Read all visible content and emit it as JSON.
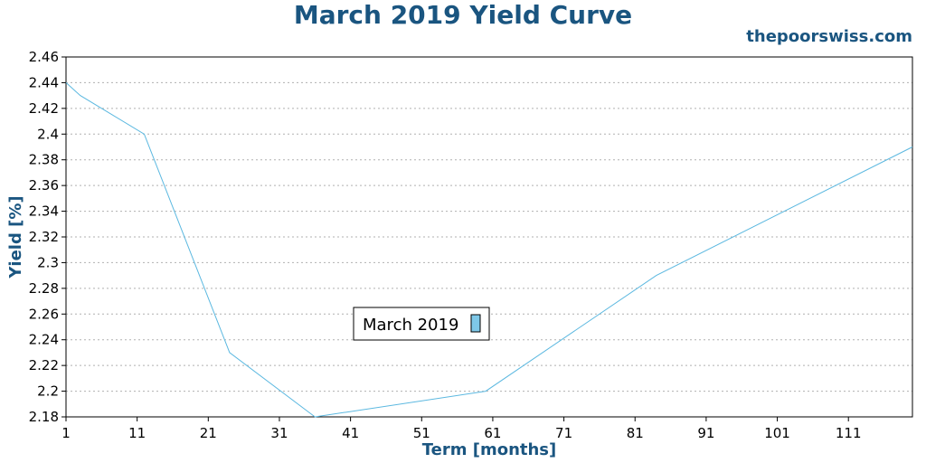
{
  "header": {
    "title": "March 2019 Yield Curve",
    "watermark": "thepoorswiss.com"
  },
  "colors": {
    "title": "#1a5580",
    "series": "#5bb8e0",
    "legend_swatch": "#7ec8e8",
    "grid": "#b0b0b0"
  },
  "chart_data": {
    "type": "line",
    "title": "March 2019 Yield Curve",
    "xlabel": "Term [months]",
    "ylabel": "Yield [%]",
    "xlim": [
      1,
      120
    ],
    "ylim": [
      2.18,
      2.46
    ],
    "xticks": [
      "1",
      "11",
      "21",
      "31",
      "41",
      "51",
      "61",
      "71",
      "81",
      "91",
      "101",
      "111"
    ],
    "yticks": [
      "2.18",
      "2.2",
      "2.22",
      "2.24",
      "2.26",
      "2.28",
      "2.3",
      "2.32",
      "2.34",
      "2.36",
      "2.38",
      "2.4",
      "2.42",
      "2.44",
      "2.46"
    ],
    "grid": true,
    "legend_position": "center",
    "series": [
      {
        "name": "March 2019",
        "x": [
          1,
          3,
          12,
          24,
          36,
          60,
          84,
          120
        ],
        "y": [
          2.44,
          2.43,
          2.4,
          2.23,
          2.18,
          2.2,
          2.29,
          2.39
        ]
      }
    ]
  }
}
